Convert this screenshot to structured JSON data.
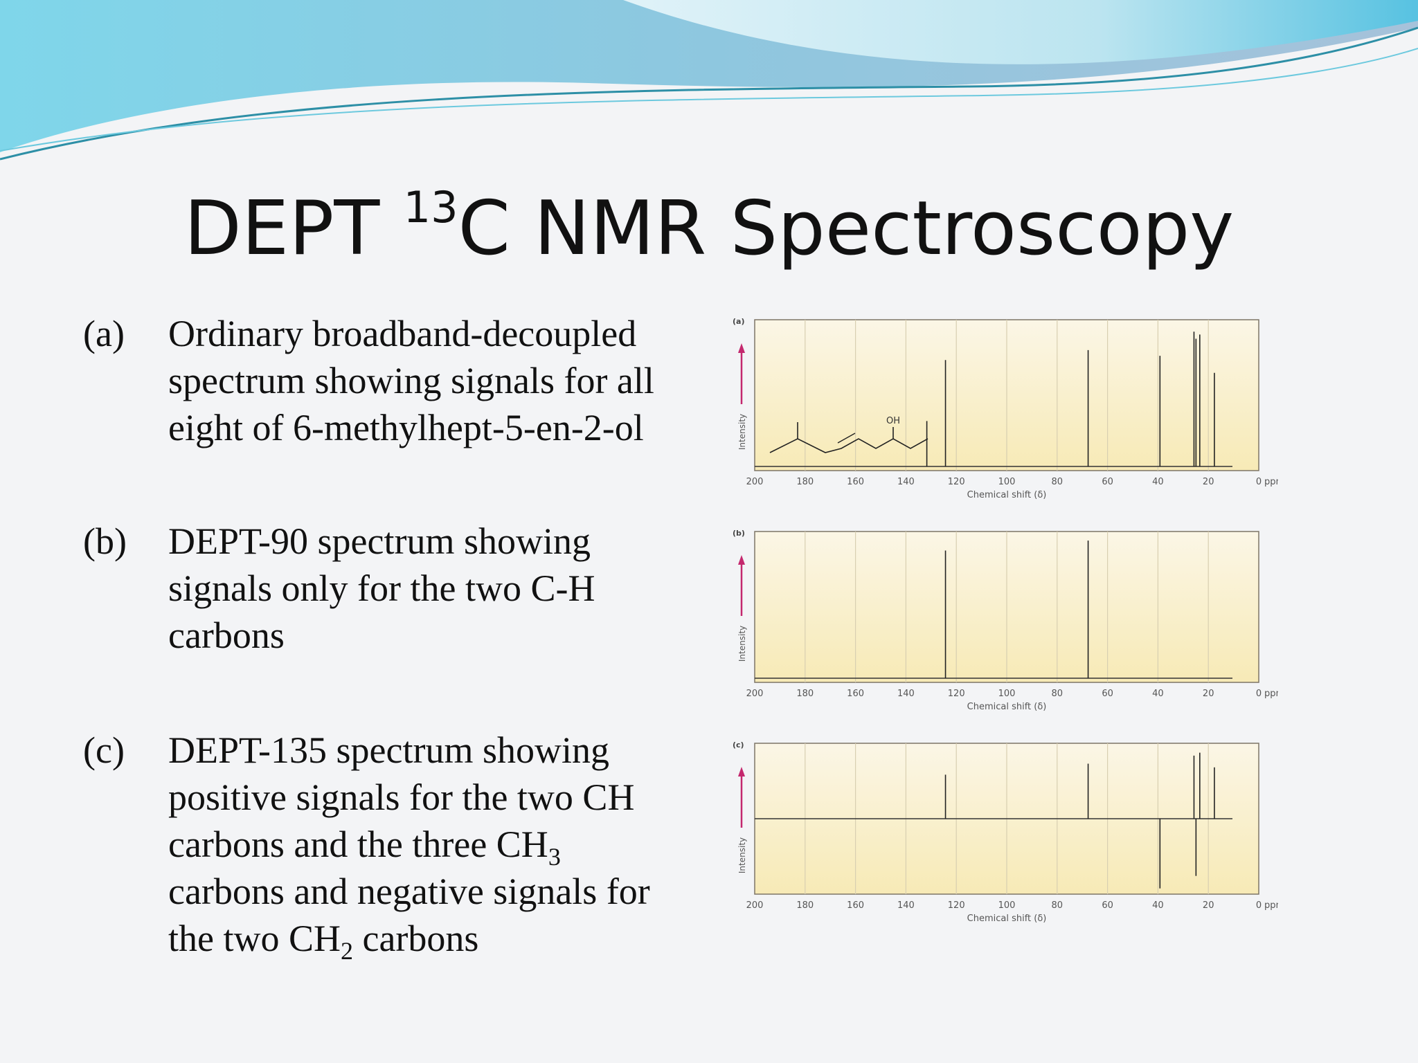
{
  "title": {
    "main": "DEPT ",
    "sup": "13",
    "rest": "C NMR Spectroscopy"
  },
  "items": [
    {
      "marker": "(a)",
      "text": "Ordinary broadband-decoupled spectrum showing signals for all eight of 6-methylhept-5-en-2-ol"
    },
    {
      "marker": "(b)",
      "text": "DEPT-90 spectrum showing signals only for the two C-H carbons"
    },
    {
      "marker": "(c)",
      "lines": [
        {
          "t": "DEPT-135 spectrum showing"
        },
        {
          "t": "positive signals for the two CH"
        },
        {
          "t": "carbons and the three CH",
          "sub": "3"
        },
        {
          "t": "carbons and negative signals for"
        },
        {
          "t": "the two CH",
          "sub": "2",
          "after": " carbons"
        }
      ]
    }
  ],
  "colors": {
    "plot_bg_top": "#fbf6e6",
    "plot_bg_bottom": "#f7eab6",
    "arrow": "#c4286e",
    "accent_wave": "#5ec7e6"
  },
  "chart_data": [
    {
      "type": "line",
      "panel_label": "(a)",
      "xlabel": "Chemical shift (δ)",
      "ylabel": "Intensity",
      "unit_label": "ppm",
      "x_ticks": [
        200,
        180,
        160,
        140,
        120,
        100,
        80,
        60,
        40,
        20,
        0
      ],
      "xlim": [
        200,
        0
      ],
      "grid": true,
      "molecule_label": "OH",
      "peaks": [
        {
          "x": 131.7,
          "y": 0.32
        },
        {
          "x": 124.3,
          "y": 0.75
        },
        {
          "x": 67.7,
          "y": 0.82
        },
        {
          "x": 39.2,
          "y": 0.78
        },
        {
          "x": 25.7,
          "y": 0.95
        },
        {
          "x": 24.9,
          "y": 0.9
        },
        {
          "x": 23.4,
          "y": 0.93
        },
        {
          "x": 17.6,
          "y": 0.66
        }
      ]
    },
    {
      "type": "line",
      "panel_label": "(b)",
      "xlabel": "Chemical shift (δ)",
      "ylabel": "Intensity",
      "unit_label": "ppm",
      "x_ticks": [
        200,
        180,
        160,
        140,
        120,
        100,
        80,
        60,
        40,
        20,
        0
      ],
      "xlim": [
        200,
        0
      ],
      "grid": true,
      "peaks": [
        {
          "x": 124.3,
          "y": 0.9
        },
        {
          "x": 67.7,
          "y": 0.97
        }
      ]
    },
    {
      "type": "line",
      "panel_label": "(c)",
      "xlabel": "Chemical shift (δ)",
      "ylabel": "Intensity",
      "unit_label": "ppm",
      "x_ticks": [
        200,
        180,
        160,
        140,
        120,
        100,
        80,
        60,
        40,
        20,
        0
      ],
      "xlim": [
        200,
        0
      ],
      "grid": true,
      "peaks": [
        {
          "x": 124.3,
          "y": 0.6
        },
        {
          "x": 67.7,
          "y": 0.75
        },
        {
          "x": 39.2,
          "y": -0.95
        },
        {
          "x": 25.7,
          "y": 0.86
        },
        {
          "x": 24.9,
          "y": -0.78
        },
        {
          "x": 23.4,
          "y": 0.9
        },
        {
          "x": 17.6,
          "y": 0.7
        }
      ]
    }
  ]
}
